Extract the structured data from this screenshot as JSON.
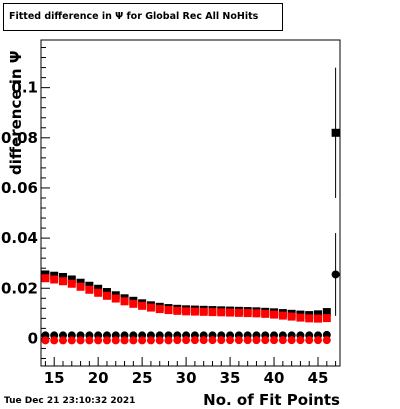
{
  "chart_data": {
    "type": "scatter",
    "title": "Fitted difference in  Ψ  for Global Rec All NoHits",
    "xlabel": "No. of Fit Points",
    "ylabel": "difference in  Ψ",
    "xlim": [
      13.5,
      47.5
    ],
    "ylim": [
      -0.011,
      0.119
    ],
    "x_ticks": [
      15,
      20,
      25,
      30,
      35,
      40,
      45
    ],
    "x_tick_labels": [
      "15",
      "20",
      "25",
      "30",
      "35",
      "40",
      "45"
    ],
    "y_ticks": [
      0,
      0.02,
      0.04,
      0.06,
      0.08,
      0.1
    ],
    "y_tick_labels": [
      "0",
      "0.02",
      "0.04",
      "0.06",
      "0.08",
      "0.1"
    ],
    "grid": false,
    "legend": "none",
    "series": [
      {
        "marker": "square",
        "color": "#000000",
        "x": [
          14,
          15,
          16,
          17,
          18,
          19,
          20,
          21,
          22,
          23,
          24,
          25,
          26,
          27,
          28,
          29,
          30,
          31,
          32,
          33,
          34,
          35,
          36,
          37,
          38,
          39,
          40,
          41,
          42,
          43,
          44,
          45,
          46
        ],
        "y": [
          0.0255,
          0.025,
          0.0245,
          0.0235,
          0.0222,
          0.021,
          0.0198,
          0.0185,
          0.0172,
          0.016,
          0.015,
          0.014,
          0.0132,
          0.0126,
          0.0121,
          0.0118,
          0.0116,
          0.0115,
          0.0114,
          0.0113,
          0.0112,
          0.0111,
          0.011,
          0.0109,
          0.0108,
          0.0106,
          0.0104,
          0.0101,
          0.0098,
          0.0095,
          0.0093,
          0.0096,
          0.0105
        ]
      },
      {
        "marker": "square",
        "color": "#ff0000",
        "x": [
          14,
          15,
          16,
          17,
          18,
          19,
          20,
          21,
          22,
          23,
          24,
          25,
          26,
          27,
          28,
          29,
          30,
          31,
          32,
          33,
          34,
          35,
          36,
          37,
          38,
          39,
          40,
          41,
          42,
          43,
          44,
          45,
          46
        ],
        "y": [
          0.024,
          0.0235,
          0.0228,
          0.0218,
          0.0206,
          0.0194,
          0.0182,
          0.017,
          0.0159,
          0.0148,
          0.0138,
          0.013,
          0.0123,
          0.0117,
          0.0113,
          0.011,
          0.0108,
          0.0107,
          0.0106,
          0.0105,
          0.0104,
          0.0103,
          0.0102,
          0.0101,
          0.01,
          0.0098,
          0.0095,
          0.0091,
          0.0087,
          0.0083,
          0.008,
          0.0079,
          0.0081
        ]
      },
      {
        "marker": "circle",
        "color": "#000000",
        "x": [
          14,
          15,
          16,
          17,
          18,
          19,
          20,
          21,
          22,
          23,
          24,
          25,
          26,
          27,
          28,
          29,
          30,
          31,
          32,
          33,
          34,
          35,
          36,
          37,
          38,
          39,
          40,
          41,
          42,
          43,
          44,
          45,
          46
        ],
        "y": [
          0.0012,
          0.0012,
          0.0012,
          0.0012,
          0.0012,
          0.0012,
          0.0012,
          0.0012,
          0.0012,
          0.0012,
          0.0012,
          0.0012,
          0.0012,
          0.0012,
          0.0012,
          0.0012,
          0.0012,
          0.0012,
          0.0012,
          0.0012,
          0.0012,
          0.0012,
          0.0012,
          0.0012,
          0.0012,
          0.0012,
          0.0012,
          0.0012,
          0.0012,
          0.0012,
          0.0012,
          0.0012,
          0.0014
        ]
      },
      {
        "marker": "circle",
        "color": "#ff0000",
        "x": [
          14,
          15,
          16,
          17,
          18,
          19,
          20,
          21,
          22,
          23,
          24,
          25,
          26,
          27,
          28,
          29,
          30,
          31,
          32,
          33,
          34,
          35,
          36,
          37,
          38,
          39,
          40,
          41,
          42,
          43,
          44,
          45,
          46
        ],
        "y": [
          -0.0008,
          -0.0008,
          -0.0008,
          -0.0008,
          -0.0008,
          -0.0008,
          -0.0008,
          -0.0008,
          -0.0008,
          -0.0008,
          -0.0008,
          -0.0008,
          -0.0008,
          -0.0008,
          -0.0008,
          -0.0007,
          -0.0007,
          -0.0007,
          -0.0007,
          -0.0007,
          -0.0007,
          -0.0007,
          -0.0007,
          -0.0007,
          -0.0007,
          -0.0007,
          -0.0007,
          -0.0007,
          -0.0007,
          -0.0007,
          -0.0007,
          -0.0007,
          -0.0007
        ]
      }
    ],
    "outliers": [
      {
        "marker": "square",
        "color": "#000000",
        "x": 47,
        "y": 0.082,
        "err_low": 0.056,
        "err_high": 0.108
      },
      {
        "marker": "circle",
        "color": "#000000",
        "x": 47,
        "y": 0.0255,
        "err_low": 0.009,
        "err_high": 0.042
      }
    ]
  },
  "footer": {
    "datestamp": "Tue Dec 21 23:10:32 2021"
  }
}
